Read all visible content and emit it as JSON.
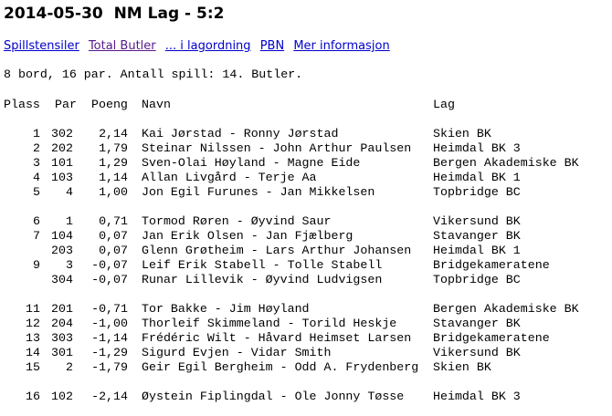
{
  "title": "2014-05-30  NM Lag - 5:2",
  "links": [
    "Spillstensiler",
    "Total Butler",
    "... i lagordning",
    "PBN",
    "Mer informasjon"
  ],
  "info": "8 bord, 16 par. Antall spill: 14. Butler.",
  "table": {
    "headers": [
      "Plass",
      "Par",
      "Poeng",
      "Navn",
      "Lag"
    ],
    "rows": [
      [
        "1",
        "302",
        "2,14",
        "Kai Jørstad - Ronny Jørstad",
        "Skien BK"
      ],
      [
        "2",
        "202",
        "1,79",
        "Steinar Nilssen - John Arthur Paulsen",
        "Heimdal BK 3"
      ],
      [
        "3",
        "101",
        "1,29",
        "Sven-Olai Høyland - Magne Eide",
        "Bergen Akademiske BK"
      ],
      [
        "4",
        "103",
        "1,14",
        "Allan Livgård - Terje Aa",
        "Heimdal BK 1"
      ],
      [
        "5",
        "4",
        "1,00",
        "Jon Egil Furunes - Jan Mikkelsen",
        "Topbridge BC"
      ],
      [
        "6",
        "1",
        "0,71",
        "Tormod Røren - Øyvind Saur",
        "Vikersund BK"
      ],
      [
        "7",
        "104",
        "0,07",
        "Jan Erik Olsen - Jan Fjælberg",
        "Stavanger BK"
      ],
      [
        "",
        "203",
        "0,07",
        "Glenn Grøtheim - Lars Arthur Johansen",
        "Heimdal BK 1"
      ],
      [
        "9",
        "3",
        "-0,07",
        "Leif Erik Stabell - Tolle Stabell",
        "Bridgekameratene"
      ],
      [
        "",
        "304",
        "-0,07",
        "Runar Lillevik - Øyvind Ludvigsen",
        "Topbridge BC"
      ],
      [
        "11",
        "201",
        "-0,71",
        "Tor Bakke - Jim Høyland",
        "Bergen Akademiske BK"
      ],
      [
        "12",
        "204",
        "-1,00",
        "Thorleif Skimmeland - Torild Heskje",
        "Stavanger BK"
      ],
      [
        "13",
        "303",
        "-1,14",
        "Frédéric Wilt - Håvard Heimset Larsen",
        "Bridgekameratene"
      ],
      [
        "14",
        "301",
        "-1,29",
        "Sigurd Evjen - Vidar Smith",
        "Vikersund BK"
      ],
      [
        "15",
        "2",
        "-1,79",
        "Geir Egil Bergheim - Odd A. Frydenberg",
        "Skien BK"
      ],
      [
        "16",
        "102",
        "-2,14",
        "Øystein Fiplingdal - Ole Jonny Tøsse",
        "Heimdal BK 3"
      ]
    ]
  }
}
